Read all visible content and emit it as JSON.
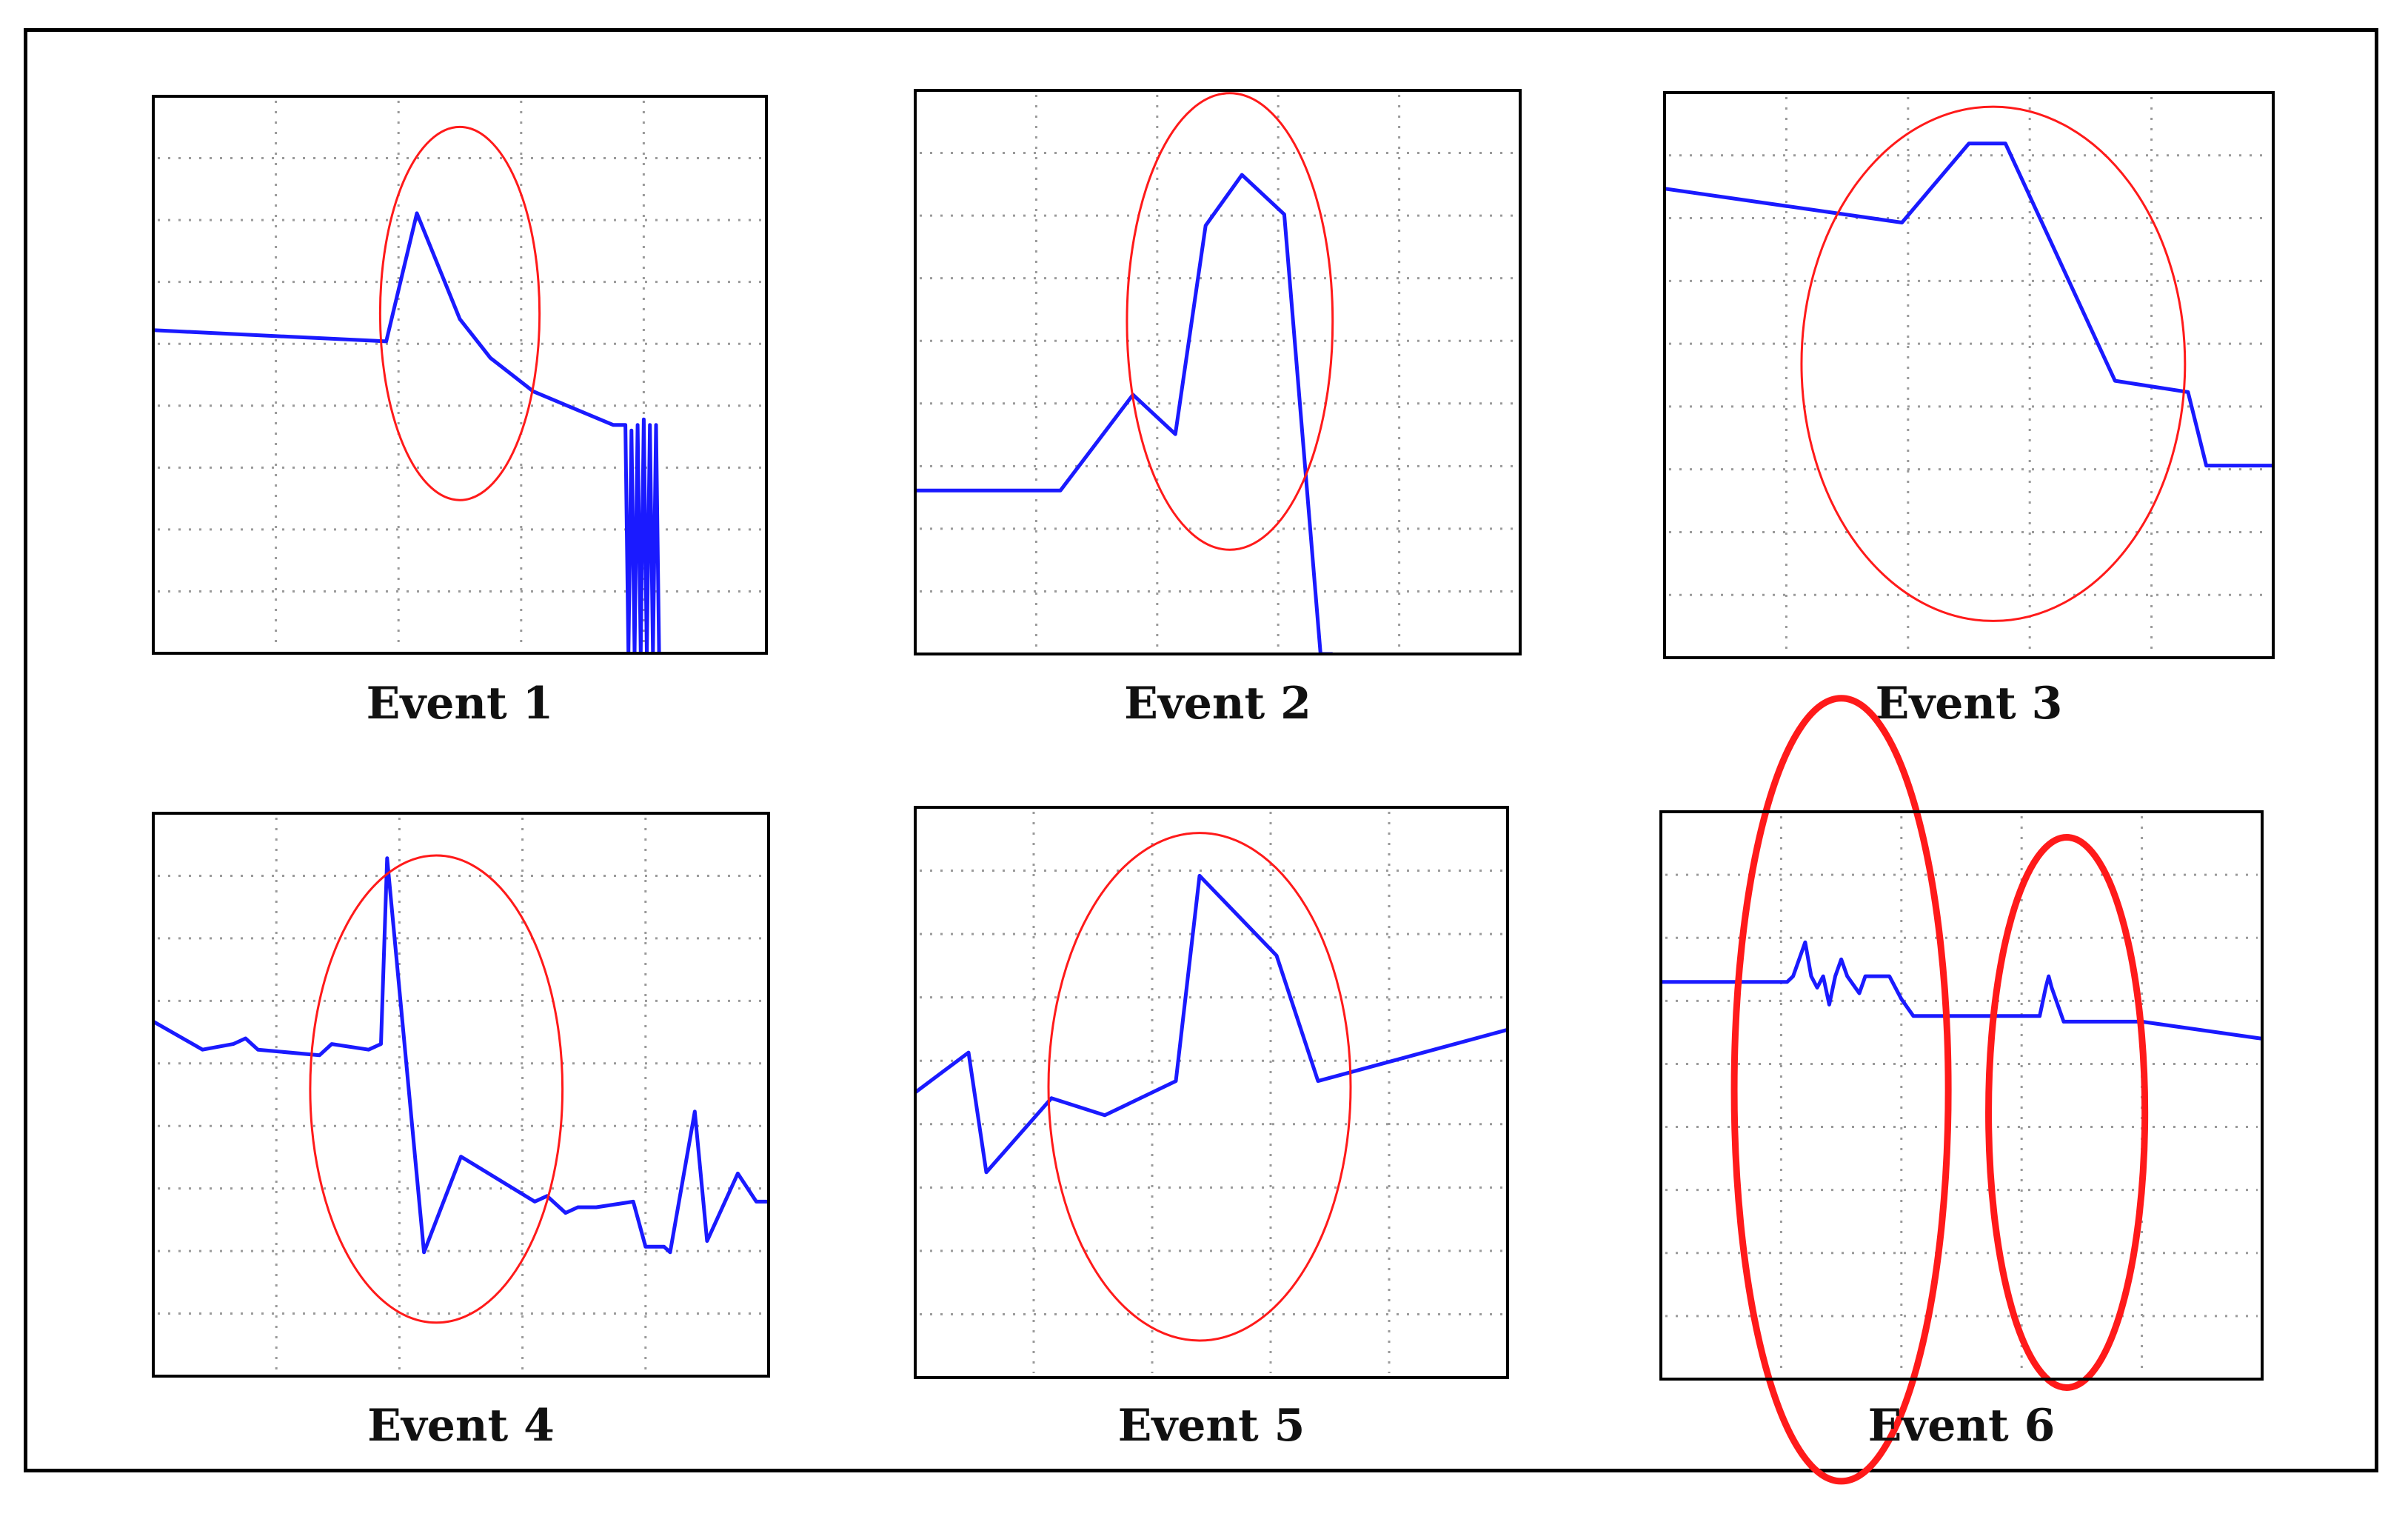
{
  "figure": {
    "trace_color": "#1a1aff",
    "highlight_color": "#ff1a1a",
    "grid_color": "#9a9a9a",
    "frame_color": "#000000"
  },
  "chart_data": [
    {
      "type": "line",
      "label": "Event 1",
      "x": [
        0,
        0.38,
        0.43,
        0.5,
        0.55,
        0.62,
        0.75,
        0.77,
        0.775,
        0.78,
        0.785,
        0.79,
        0.795,
        0.8,
        0.805,
        0.81,
        0.815,
        0.82,
        0.825
      ],
      "y": [
        0.58,
        0.56,
        0.79,
        0.6,
        0.53,
        0.47,
        0.41,
        0.41,
        0.0,
        0.4,
        0.0,
        0.41,
        0.0,
        0.42,
        0.0,
        0.41,
        0.0,
        0.41,
        0.0
      ],
      "xlim": [
        0,
        1
      ],
      "ylim": [
        0,
        1
      ],
      "highlights": [
        {
          "cx": 0.5,
          "cy": 0.61,
          "rx": 0.13,
          "ry": 0.335,
          "stroke": 3
        }
      ]
    },
    {
      "type": "line",
      "label": "Event 2",
      "x": [
        0,
        0.24,
        0.36,
        0.43,
        0.48,
        0.54,
        0.61,
        0.67,
        0.69
      ],
      "y": [
        0.29,
        0.29,
        0.46,
        0.39,
        0.76,
        0.85,
        0.78,
        0.0,
        0.0
      ],
      "xlim": [
        0,
        1
      ],
      "ylim": [
        0,
        1
      ],
      "highlights": [
        {
          "cx": 0.52,
          "cy": 0.59,
          "rx": 0.17,
          "ry": 0.405,
          "stroke": 3
        }
      ]
    },
    {
      "type": "line",
      "label": "Event 3",
      "x": [
        0,
        0.39,
        0.5,
        0.56,
        0.74,
        0.86,
        0.89,
        1.0
      ],
      "y": [
        0.83,
        0.77,
        0.91,
        0.91,
        0.49,
        0.47,
        0.34,
        0.34
      ],
      "xlim": [
        0,
        1
      ],
      "ylim": [
        0,
        1
      ],
      "highlights": [
        {
          "cx": 0.54,
          "cy": 0.52,
          "rx": 0.315,
          "ry": 0.455,
          "stroke": 3
        }
      ]
    },
    {
      "type": "line",
      "label": "Event 4",
      "x": [
        0,
        0.08,
        0.13,
        0.15,
        0.17,
        0.27,
        0.28,
        0.29,
        0.35,
        0.37,
        0.38,
        0.44,
        0.5,
        0.62,
        0.64,
        0.67,
        0.69,
        0.72,
        0.78,
        0.8,
        0.83,
        0.84,
        0.88,
        0.9,
        0.95,
        0.98,
        1.0
      ],
      "y": [
        0.63,
        0.58,
        0.59,
        0.6,
        0.58,
        0.57,
        0.58,
        0.59,
        0.58,
        0.59,
        0.92,
        0.22,
        0.39,
        0.31,
        0.32,
        0.29,
        0.3,
        0.3,
        0.31,
        0.23,
        0.23,
        0.22,
        0.47,
        0.24,
        0.36,
        0.31,
        0.31
      ],
      "xlim": [
        0,
        1
      ],
      "ylim": [
        0,
        1
      ],
      "highlights": [
        {
          "cx": 0.46,
          "cy": 0.51,
          "rx": 0.205,
          "ry": 0.415,
          "stroke": 3
        }
      ]
    },
    {
      "type": "line",
      "label": "Event 5",
      "x": [
        0,
        0.09,
        0.12,
        0.23,
        0.32,
        0.44,
        0.48,
        0.61,
        0.68,
        1.0
      ],
      "y": [
        0.5,
        0.57,
        0.36,
        0.49,
        0.46,
        0.52,
        0.88,
        0.74,
        0.52,
        0.61
      ],
      "xlim": [
        0,
        1
      ],
      "ylim": [
        0,
        1
      ],
      "highlights": [
        {
          "cx": 0.48,
          "cy": 0.51,
          "rx": 0.255,
          "ry": 0.445,
          "stroke": 3
        }
      ]
    },
    {
      "type": "line",
      "label": "Event 6",
      "x": [
        0,
        0.21,
        0.22,
        0.24,
        0.25,
        0.26,
        0.27,
        0.28,
        0.29,
        0.3,
        0.31,
        0.33,
        0.34,
        0.38,
        0.4,
        0.42,
        0.63,
        0.64,
        0.645,
        0.65,
        0.67,
        0.8,
        1.0
      ],
      "y": [
        0.7,
        0.7,
        0.71,
        0.77,
        0.71,
        0.69,
        0.71,
        0.66,
        0.71,
        0.74,
        0.71,
        0.68,
        0.71,
        0.71,
        0.67,
        0.64,
        0.64,
        0.69,
        0.71,
        0.69,
        0.63,
        0.63,
        0.6
      ],
      "xlim": [
        0,
        1
      ],
      "ylim": [
        0,
        1
      ],
      "highlights": [
        {
          "cx": 0.3,
          "cy": 0.51,
          "rx": 0.178,
          "ry": 0.69,
          "stroke": 9
        },
        {
          "cx": 0.675,
          "cy": 0.47,
          "rx": 0.13,
          "ry": 0.485,
          "stroke": 9
        }
      ]
    }
  ]
}
